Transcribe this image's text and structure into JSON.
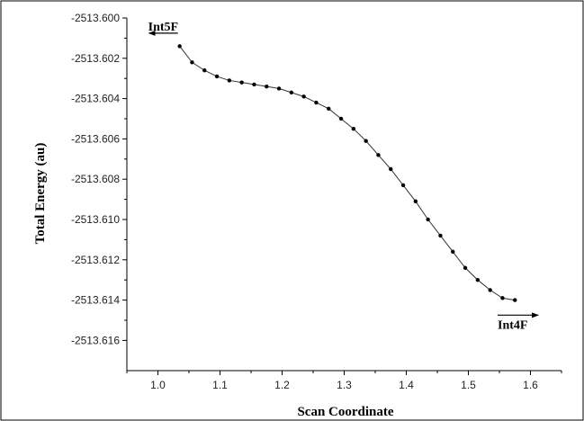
{
  "chart_data": {
    "type": "scatter",
    "xlabel": "Scan Coordinate",
    "ylabel": "Total Energy (au)",
    "xlim": [
      0.95,
      1.65
    ],
    "ylim": [
      -2513.6175,
      -2513.6
    ],
    "x_ticks": [
      1.0,
      1.1,
      1.2,
      1.3,
      1.4,
      1.5,
      1.6
    ],
    "x_tick_labels": [
      "1.0",
      "1.1",
      "1.2",
      "1.3",
      "1.4",
      "1.5",
      "1.6"
    ],
    "y_ticks": [
      -2513.6,
      -2513.602,
      -2513.604,
      -2513.606,
      -2513.608,
      -2513.61,
      -2513.612,
      -2513.614,
      -2513.616
    ],
    "y_tick_labels": [
      "-2513.600",
      "-2513.602",
      "-2513.604",
      "-2513.606",
      "-2513.608",
      "-2513.610",
      "-2513.612",
      "-2513.614",
      "-2513.616"
    ],
    "grid": false,
    "series": [
      {
        "x": [
          1.035,
          1.055,
          1.075,
          1.095,
          1.115,
          1.135,
          1.155,
          1.175,
          1.195,
          1.215,
          1.235,
          1.255,
          1.275,
          1.295,
          1.315,
          1.335,
          1.355,
          1.375,
          1.395,
          1.415,
          1.435,
          1.455,
          1.475,
          1.495,
          1.515,
          1.535,
          1.555,
          1.575
        ],
        "y": [
          -2513.6014,
          -2513.6022,
          -2513.6026,
          -2513.6029,
          -2513.6031,
          -2513.6032,
          -2513.6033,
          -2513.6034,
          -2513.6035,
          -2513.6037,
          -2513.6039,
          -2513.6042,
          -2513.6045,
          -2513.605,
          -2513.6055,
          -2513.6061,
          -2513.6068,
          -2513.6075,
          -2513.6083,
          -2513.6091,
          -2513.61,
          -2513.6108,
          -2513.6116,
          -2513.6124,
          -2513.613,
          -2513.6135,
          -2513.6139,
          -2513.614
        ]
      }
    ],
    "annotations": [
      {
        "text": "Int5F",
        "arrow_direction": "left",
        "x": 1.035,
        "y": -2513.6012
      },
      {
        "text": "Int4F",
        "arrow_direction": "right",
        "x": 1.55,
        "y": -2513.6143
      }
    ]
  }
}
